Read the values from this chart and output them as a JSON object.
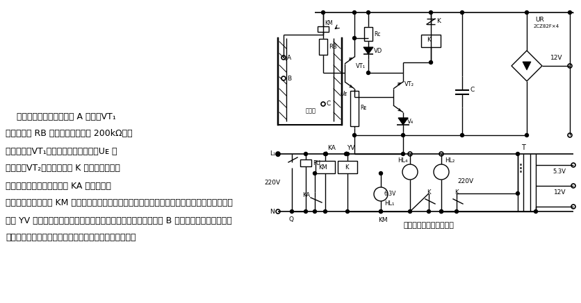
{
  "title": "晶体管水位自动控制电路",
  "bg_color": "#ffffff",
  "line_color": "#000000",
  "text_color": "#000000",
  "body_lines_left": [
    "    当水池水位上升到高水位 A 点时，VT₁",
    "的基极电阻 RB 通过水电阻（约为 200kΩ）与",
    "电源接通，VT₁获得基极电流而导通，Uᴇ 电",
    "位上升，VT₂导通，继电器 K 得电吸合，其常",
    "开触点闭合，使中间继电器 KA 得电吸合，"
  ],
  "body_lines_full": [
    "其常闭触点断开，使 KM 失电释放，其主触点断开，水泵停止泵水，同时其常开触点断开，使电",
    "磁阀 YV 失电而关闭，软水停止流入水池。当水池水位再次下降至 B 点以下时，电磁阀又重新",
    "开通。如此周而复始的工作，从而实现水位的自动控制。"
  ]
}
